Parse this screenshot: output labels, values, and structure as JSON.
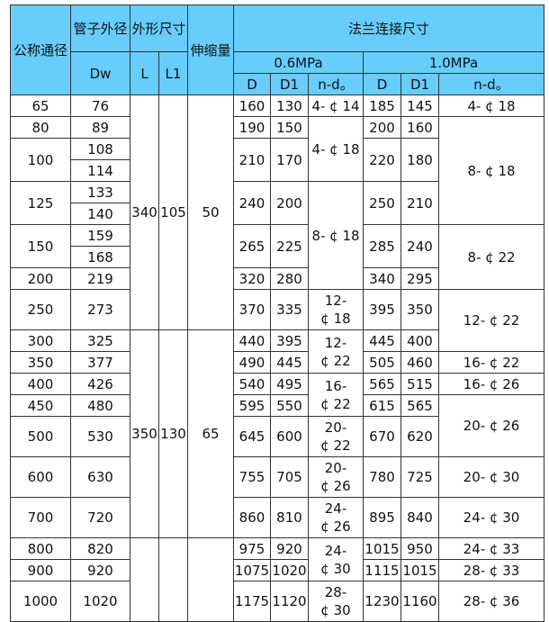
{
  "header": {
    "nominal_diameter": "公称通径",
    "pipe_od": "管子外径",
    "pipe_od_sym": "Dw",
    "overall_dims": "外形尺寸",
    "L": "L",
    "L1": "L1",
    "expansion": "伸缩量",
    "flange_dims": "法兰连接尺寸",
    "p06": "0.6MPa",
    "p10": "1.0MPa",
    "D": "D",
    "D1": "D1",
    "nd": "n-d。"
  },
  "sizes": [
    {
      "dn": "65",
      "dw": [
        "76"
      ],
      "p06": [
        "160",
        "130"
      ],
      "p10": [
        "185",
        "145"
      ]
    },
    {
      "dn": "80",
      "dw": [
        "89"
      ],
      "p06": [
        "190",
        "150"
      ],
      "p10": [
        "200",
        "160"
      ]
    },
    {
      "dn": "100",
      "dw": [
        "108",
        "114"
      ],
      "p06": [
        "210",
        "170"
      ],
      "p10": [
        "220",
        "180"
      ]
    },
    {
      "dn": "125",
      "dw": [
        "133",
        "140"
      ],
      "p06": [
        "240",
        "200"
      ],
      "p10": [
        "250",
        "210"
      ]
    },
    {
      "dn": "150",
      "dw": [
        "159",
        "168"
      ],
      "p06": [
        "265",
        "225"
      ],
      "p10": [
        "285",
        "240"
      ]
    },
    {
      "dn": "200",
      "dw": [
        "219"
      ],
      "p06": [
        "320",
        "280"
      ],
      "p10": [
        "340",
        "295"
      ]
    },
    {
      "dn": "250",
      "dw": [
        "273"
      ],
      "p06": [
        "370",
        "335"
      ],
      "p10": [
        "395",
        "350"
      ]
    },
    {
      "dn": "300",
      "dw": [
        "325"
      ],
      "p06": [
        "440",
        "395"
      ],
      "p10": [
        "445",
        "400"
      ]
    },
    {
      "dn": "350",
      "dw": [
        "377"
      ],
      "p06": [
        "490",
        "445"
      ],
      "p10": [
        "505",
        "460"
      ]
    },
    {
      "dn": "400",
      "dw": [
        "426"
      ],
      "p06": [
        "540",
        "495"
      ],
      "p10": [
        "565",
        "515"
      ]
    },
    {
      "dn": "450",
      "dw": [
        "480"
      ],
      "p06": [
        "595",
        "550"
      ],
      "p10": [
        "615",
        "565"
      ]
    },
    {
      "dn": "500",
      "dw": [
        "530"
      ],
      "p06": [
        "645",
        "600"
      ],
      "p10": [
        "670",
        "620"
      ]
    },
    {
      "dn": "600",
      "dw": [
        "630"
      ],
      "p06": [
        "755",
        "705"
      ],
      "p10": [
        "780",
        "725"
      ]
    },
    {
      "dn": "700",
      "dw": [
        "720"
      ],
      "p06": [
        "860",
        "810"
      ],
      "p10": [
        "895",
        "840"
      ]
    },
    {
      "dn": "800",
      "dw": [
        "820"
      ],
      "p06": [
        "975",
        "920"
      ],
      "p10": [
        "1015",
        "950"
      ]
    },
    {
      "dn": "900",
      "dw": [
        "920"
      ],
      "p06": [
        "1075",
        "1020"
      ],
      "p10": [
        "1115",
        "1015"
      ]
    },
    {
      "dn": "1000",
      "dw": [
        "1020"
      ],
      "p06": [
        "1175",
        "1120"
      ],
      "p10": [
        "1230",
        "1160"
      ]
    }
  ],
  "body_groups": [
    {
      "L": "340",
      "L1": "105",
      "expansion": "50"
    },
    {
      "L": "350",
      "L1": "130",
      "expansion": "65"
    },
    {
      "L": "",
      "L1": "",
      "expansion": ""
    }
  ],
  "nd_06": [
    "4- ¢ 14",
    "4- ¢ 18",
    "8- ¢ 18",
    "12-\n¢ 18",
    "12-\n¢ 22",
    "16-\n¢ 22",
    "20-\n¢ 22",
    "20-\n¢ 26",
    "24-\n¢ 26",
    "24-\n¢ 30",
    "28-\n¢ 30"
  ],
  "nd_10": [
    "4- ¢ 18",
    "8- ¢ 18",
    "8- ¢ 22",
    "12- ¢ 22",
    "16- ¢ 22",
    "16- ¢ 26",
    "20- ¢ 26",
    "20- ¢ 30",
    "24- ¢ 30",
    "24- ¢ 33",
    "28- ¢ 33",
    "28- ¢ 36"
  ]
}
